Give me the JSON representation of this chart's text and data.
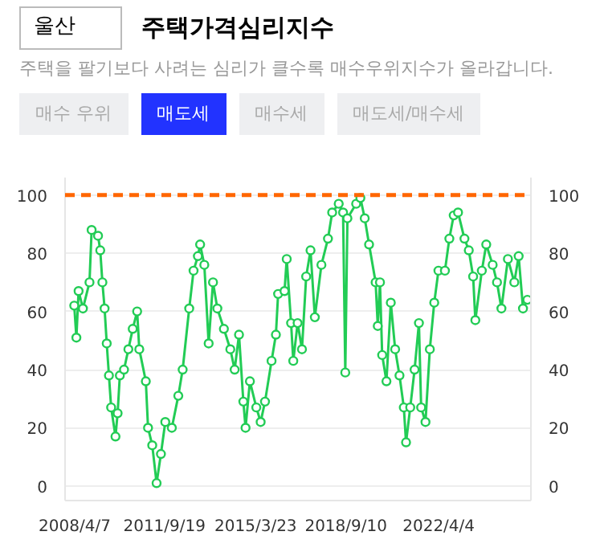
{
  "chart_data": {
    "type": "line",
    "title": "주택가격심리지수",
    "subtitle": "주택을 팔기보다 사려는 심리가 클수록 매수우위지수가 올라갑니다.",
    "annotations": [
      "울산",
      "매수 우위",
      "매도세",
      "매수세",
      "매도세/매수세"
    ],
    "x": [
      "2008-04",
      "2008-05",
      "2008-06",
      "2008-08",
      "2008-11",
      "2008-12",
      "2009-03",
      "2009-04",
      "2009-05",
      "2009-06",
      "2009-07",
      "2009-08",
      "2009-09",
      "2009-11",
      "2009-12",
      "2010-01",
      "2010-03",
      "2010-05",
      "2010-07",
      "2010-09",
      "2010-10",
      "2011-01",
      "2011-02",
      "2011-04",
      "2011-06",
      "2011-08",
      "2011-10",
      "2012-01",
      "2012-04",
      "2012-06",
      "2012-09",
      "2012-11",
      "2013-01",
      "2013-02",
      "2013-04",
      "2013-06",
      "2013-08",
      "2013-10",
      "2014-01",
      "2014-04",
      "2014-06",
      "2014-08",
      "2014-10",
      "2014-11",
      "2015-01",
      "2015-04",
      "2015-06",
      "2015-08",
      "2015-11",
      "2016-01",
      "2016-02",
      "2016-05",
      "2016-06",
      "2016-08",
      "2016-09",
      "2016-11",
      "2017-01",
      "2017-03",
      "2017-05",
      "2017-07",
      "2017-10",
      "2018-01",
      "2018-03",
      "2018-06",
      "2018-08",
      "2018-09",
      "2018-10",
      "2019-02",
      "2019-04",
      "2019-06",
      "2019-08",
      "2019-11",
      "2019-12",
      "2020-01",
      "2020-02",
      "2020-04",
      "2020-06",
      "2020-08",
      "2020-10",
      "2020-12",
      "2021-01",
      "2021-03",
      "2021-05",
      "2021-07",
      "2021-08",
      "2021-10",
      "2021-12",
      "2022-02",
      "2022-04",
      "2022-07",
      "2022-09",
      "2022-11",
      "2023-01",
      "2023-04",
      "2023-06",
      "2023-08",
      "2023-09",
      "2023-12",
      "2024-02",
      "2024-05",
      "2024-07",
      "2024-09",
      "2024-12",
      "2025-03",
      "2025-05",
      "2025-07",
      "2025-09"
    ],
    "series": [
      {
        "color": "#22cc55",
        "values": [
          62,
          51,
          67,
          61,
          70,
          88,
          86,
          81,
          70,
          61,
          49,
          38,
          27,
          17,
          25,
          38,
          40,
          47,
          54,
          60,
          47,
          36,
          20,
          14,
          1,
          11,
          22,
          20,
          31,
          40,
          61,
          74,
          79,
          83,
          76,
          49,
          70,
          61,
          54,
          47,
          40,
          52,
          29,
          20,
          36,
          27,
          22,
          29,
          43,
          52,
          66,
          67,
          78,
          56,
          43,
          56,
          47,
          72,
          81,
          58,
          76,
          85,
          94,
          97,
          94,
          39,
          92,
          97,
          99,
          92,
          83,
          70,
          55,
          70,
          45,
          36,
          63,
          47,
          38,
          27,
          15,
          27,
          40,
          56,
          27,
          22,
          47,
          63,
          74,
          74,
          85,
          93,
          94,
          85,
          81,
          72,
          57,
          74,
          83,
          76,
          70,
          61,
          78,
          70,
          79,
          61,
          64
        ]
      }
    ],
    "marker": "circle",
    "line_style": "solid",
    "xlim": [
      "2007-11-24",
      "2025-10-20"
    ],
    "xticks": [
      {
        "value": "2008-04-07",
        "label": "2008/4/7"
      },
      {
        "value": "2011-09-19",
        "label": "2011/9/19"
      },
      {
        "value": "2015-03-23",
        "label": "2015/3/23"
      },
      {
        "value": "2018-09-10",
        "label": "2018/9/10"
      },
      {
        "value": "2022-04-04",
        "label": "2022/4/4"
      }
    ],
    "ylim": [
      -5,
      106
    ],
    "yticks": [
      0,
      20,
      40,
      60,
      80,
      100
    ],
    "y2lim": [
      -5,
      106
    ],
    "y2ticks": [
      0,
      20,
      40,
      60,
      80,
      100
    ],
    "grid": "y",
    "ref_lines": [
      {
        "axis": "y",
        "value": 100,
        "color": "#ff6600",
        "line_style": "dashed"
      }
    ]
  }
}
